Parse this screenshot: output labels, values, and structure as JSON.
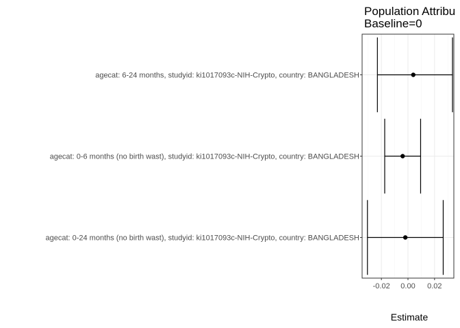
{
  "chart_data": {
    "type": "forest",
    "title": "Population Attribu",
    "subtitle": "Baseline=0",
    "xlabel": "Estimate",
    "ylabel": "",
    "xlim": [
      -0.0345,
      0.0345
    ],
    "xticks": [
      -0.02,
      0.0,
      0.02
    ],
    "xtick_labels": [
      "-0.02",
      "0.00",
      "0.02"
    ],
    "grid": true,
    "categories": [
      "agecat: 6-24 months, studyid: ki1017093c-NIH-Crypto, country: BANGLADESH",
      "agecat: 0-6 months (no birth wast), studyid: ki1017093c-NIH-Crypto, country: BANGLADESH",
      "agecat: 0-24 months (no birth wast), studyid: ki1017093c-NIH-Crypto, country: BANGLADESH"
    ],
    "estimates": [
      0.004,
      -0.004,
      -0.002
    ],
    "ci_lower": [
      -0.023,
      -0.0175,
      -0.0305
    ],
    "ci_upper": [
      0.0335,
      0.0095,
      0.0265
    ]
  }
}
